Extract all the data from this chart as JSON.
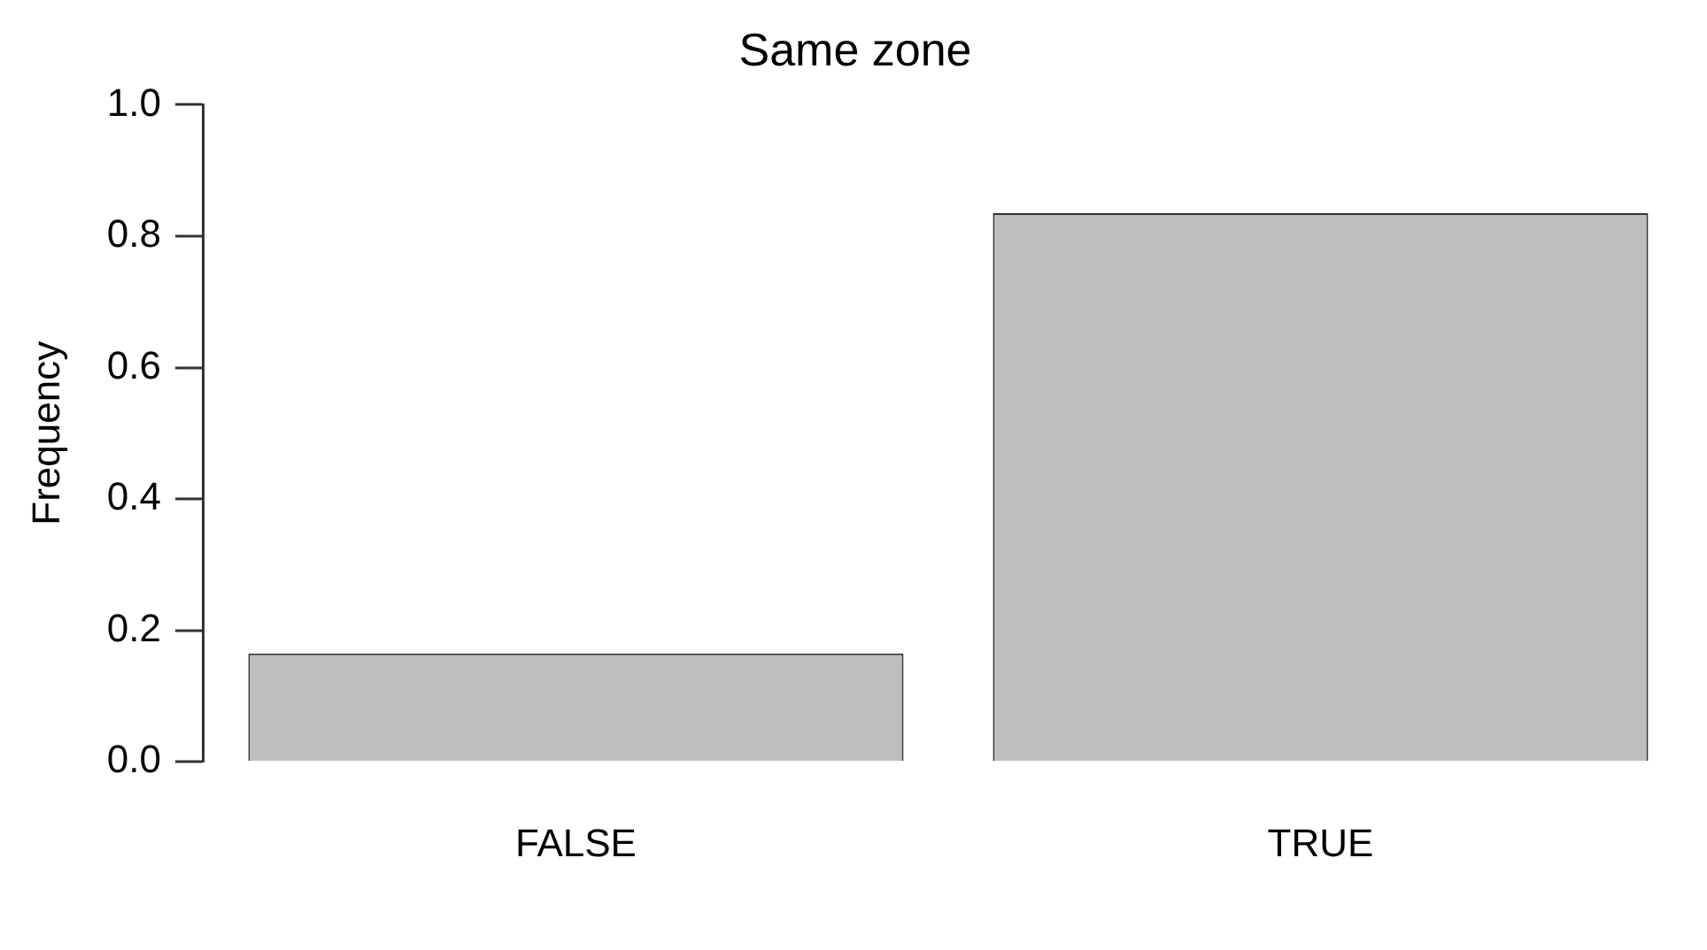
{
  "chart_data": {
    "type": "bar",
    "title": "Same zone",
    "ylabel": "Frequency",
    "categories": [
      "FALSE",
      "TRUE"
    ],
    "values": [
      0.165,
      0.835
    ],
    "color": "#bebebe",
    "ylim": [
      0,
      1
    ],
    "yticks": [
      {
        "value": 0,
        "label": "0.0"
      },
      {
        "value": 0.2,
        "label": "0.2"
      },
      {
        "value": 0.4,
        "label": "0.4"
      },
      {
        "value": 0.6,
        "label": "0.6"
      },
      {
        "value": 0.8,
        "label": "0.8"
      },
      {
        "value": 1,
        "label": "1.0"
      }
    ],
    "grid": false,
    "legend": false
  }
}
